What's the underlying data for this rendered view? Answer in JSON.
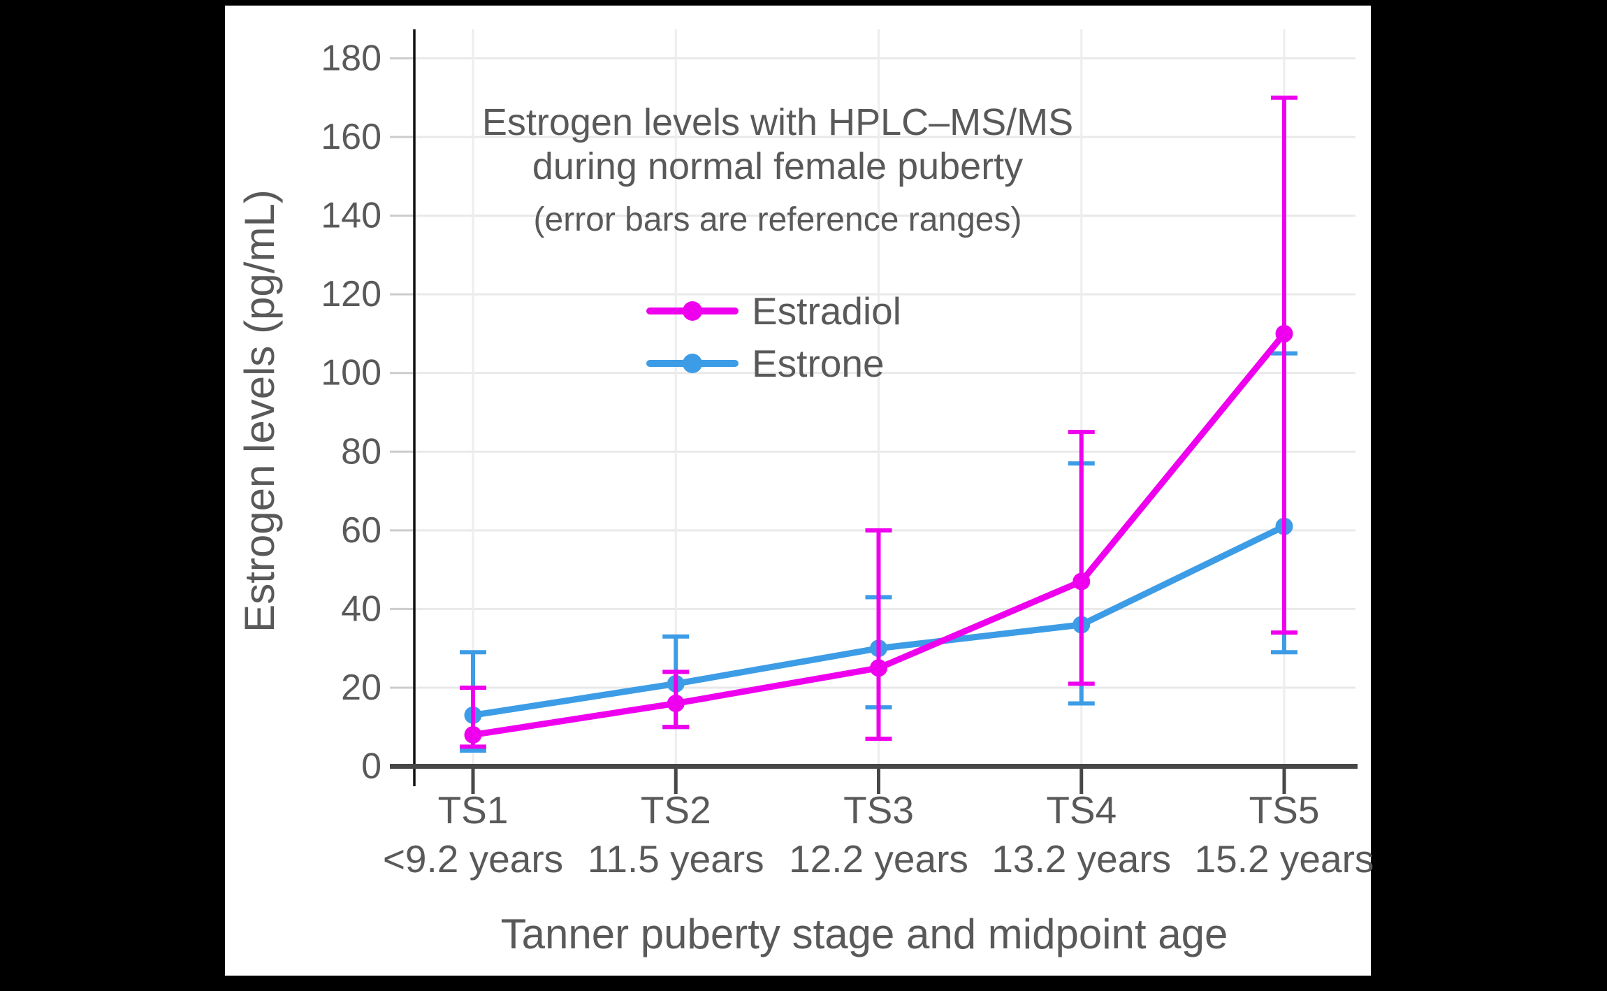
{
  "window": {
    "background_color": "#000000",
    "panel_color": "#ffffff"
  },
  "chart_data": {
    "type": "line",
    "title_lines": [
      "Estrogen levels with HPLC–MS/MS",
      "during normal female puberty"
    ],
    "subtitle": "(error bars are reference ranges)",
    "xlabel": "Tanner puberty stage and midpoint age",
    "ylabel": "Estrogen levels (pg/mL)",
    "ylim": [
      0,
      180
    ],
    "yticks": [
      0,
      20,
      40,
      60,
      80,
      100,
      120,
      140,
      160,
      180
    ],
    "grid": true,
    "legend_position": "inside-upper-left",
    "error_bar_meaning": "reference ranges",
    "categories": [
      "TS1",
      "TS2",
      "TS3",
      "TS4",
      "TS5"
    ],
    "category_ages": [
      "<9.2 years",
      "11.5 years",
      "12.2 years",
      "13.2 years",
      "15.2 years"
    ],
    "series": [
      {
        "name": "Estradiol",
        "color": "#EE00EE",
        "values": [
          8,
          16,
          25,
          47,
          110
        ],
        "error_low": [
          5,
          10,
          7,
          21,
          34
        ],
        "error_high": [
          20,
          24,
          60,
          85,
          170
        ]
      },
      {
        "name": "Estrone",
        "color": "#3D9CE6",
        "values": [
          13,
          21,
          30,
          36,
          61
        ],
        "error_low": [
          4,
          10,
          15,
          16,
          29
        ],
        "error_high": [
          29,
          33,
          43,
          77,
          105
        ]
      }
    ],
    "text_color": "#595959",
    "axis_color": "#474747",
    "y_axis_line_color": "#111111",
    "gridline_color": "#e9e9e9"
  }
}
